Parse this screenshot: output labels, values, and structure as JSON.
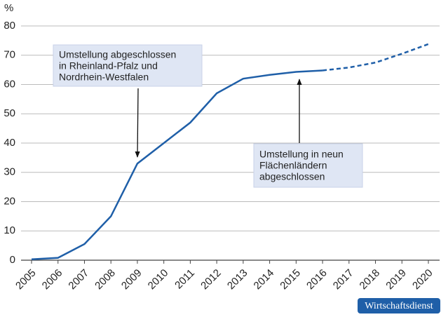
{
  "chart_data": {
    "type": "line",
    "y_label": "%",
    "categories": [
      "2005",
      "2006",
      "2007",
      "2008",
      "2009",
      "2010",
      "2011",
      "2012",
      "2013",
      "2014",
      "2015",
      "2016",
      "2017",
      "2018",
      "2019",
      "2020"
    ],
    "series": [
      {
        "color": "#1f5fa8",
        "dashed": false,
        "values": [
          0.3,
          0.8,
          5.5,
          15,
          33,
          40,
          47,
          57,
          62,
          63.3,
          64.3,
          64.8,
          null,
          null,
          null,
          null
        ]
      },
      {
        "color": "#1f5fa8",
        "dashed": true,
        "values": [
          null,
          null,
          null,
          null,
          null,
          null,
          null,
          null,
          null,
          null,
          null,
          64.8,
          65.8,
          67.5,
          70.5,
          73.8
        ]
      }
    ],
    "ylim": [
      0,
      80
    ],
    "yticks": [
      0,
      10,
      20,
      30,
      40,
      50,
      60,
      70,
      80
    ],
    "grid": true,
    "annotations": [
      {
        "lines": [
          "Umstellung abgeschlossen",
          "in Rheinland-Pfalz und",
          "Nordrhein-Westfalen"
        ]
      },
      {
        "lines": [
          "Umstellung in neun",
          "Flächenländern",
          "abgeschlossen"
        ]
      }
    ],
    "source_badge": "Wirtschaftsdienst"
  }
}
